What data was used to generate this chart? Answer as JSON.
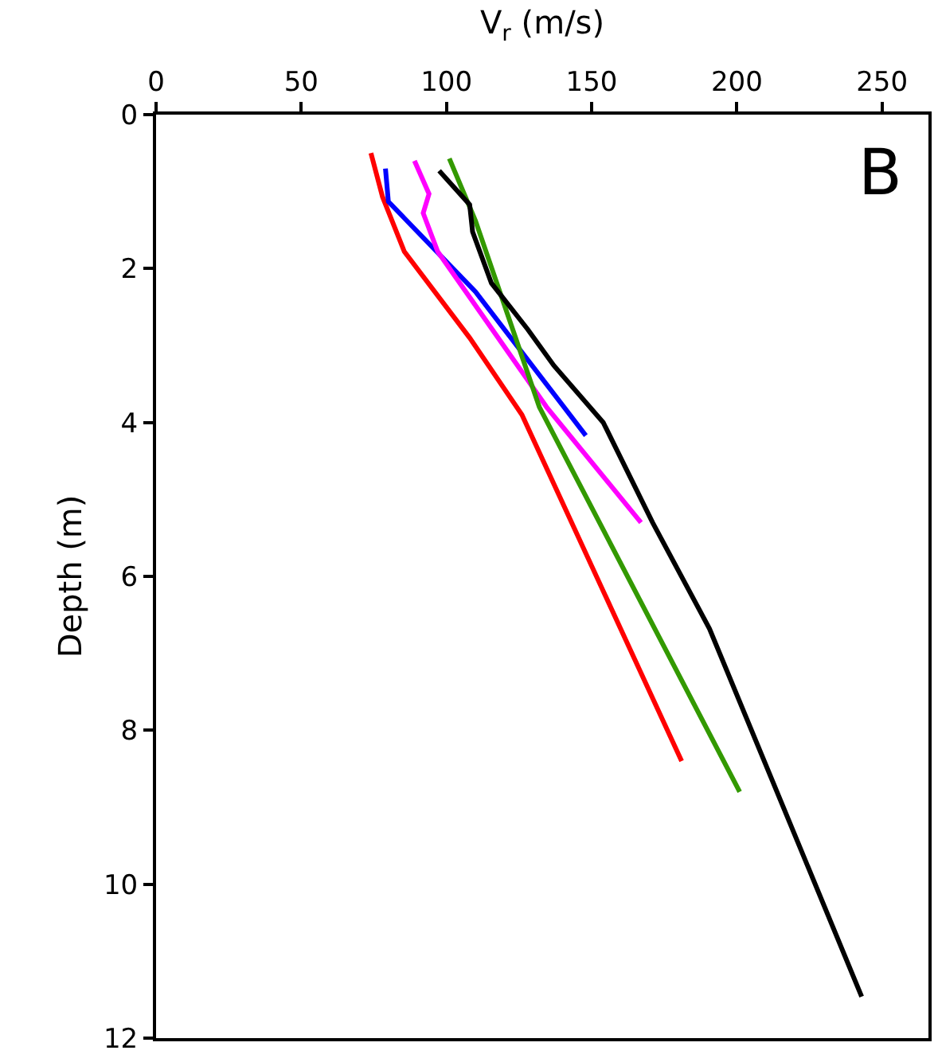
{
  "chart_data": {
    "type": "line",
    "xlabel": "V$_{r}$ (m/s)",
    "ylabel": "Depth (m)",
    "annotations": [
      "B"
    ],
    "xlim": [
      0,
      266
    ],
    "xticks": [
      0,
      50,
      100,
      150,
      200,
      250
    ],
    "ylim": [
      12,
      0
    ],
    "yticks": [
      0,
      2,
      4,
      6,
      8,
      10,
      12
    ],
    "series": [
      {
        "color": "#ff0000",
        "x": [
          74,
          78,
          85.5,
          108,
          126,
          181
        ],
        "values": [
          0.5,
          1.07,
          1.78,
          2.9,
          3.9,
          8.4
        ]
      },
      {
        "color": "#0000ff",
        "x": [
          79,
          80,
          110,
          148
        ],
        "values": [
          0.7,
          1.13,
          2.3,
          4.17
        ]
      },
      {
        "color": "#ff00ff",
        "x": [
          89,
          94,
          92,
          97,
          134.5,
          167
        ],
        "values": [
          0.6,
          1.03,
          1.28,
          1.78,
          3.8,
          5.3
        ]
      },
      {
        "color": "#339900",
        "x": [
          101,
          110,
          132,
          201
        ],
        "values": [
          0.57,
          1.38,
          3.8,
          8.8
        ]
      },
      {
        "color": "#000000",
        "x": [
          97.5,
          108,
          109,
          115.5,
          128,
          137,
          154,
          171,
          190.6,
          243
        ],
        "values": [
          0.73,
          1.17,
          1.52,
          2.19,
          2.79,
          3.26,
          4.0,
          5.3,
          6.68,
          11.46
        ]
      }
    ]
  }
}
